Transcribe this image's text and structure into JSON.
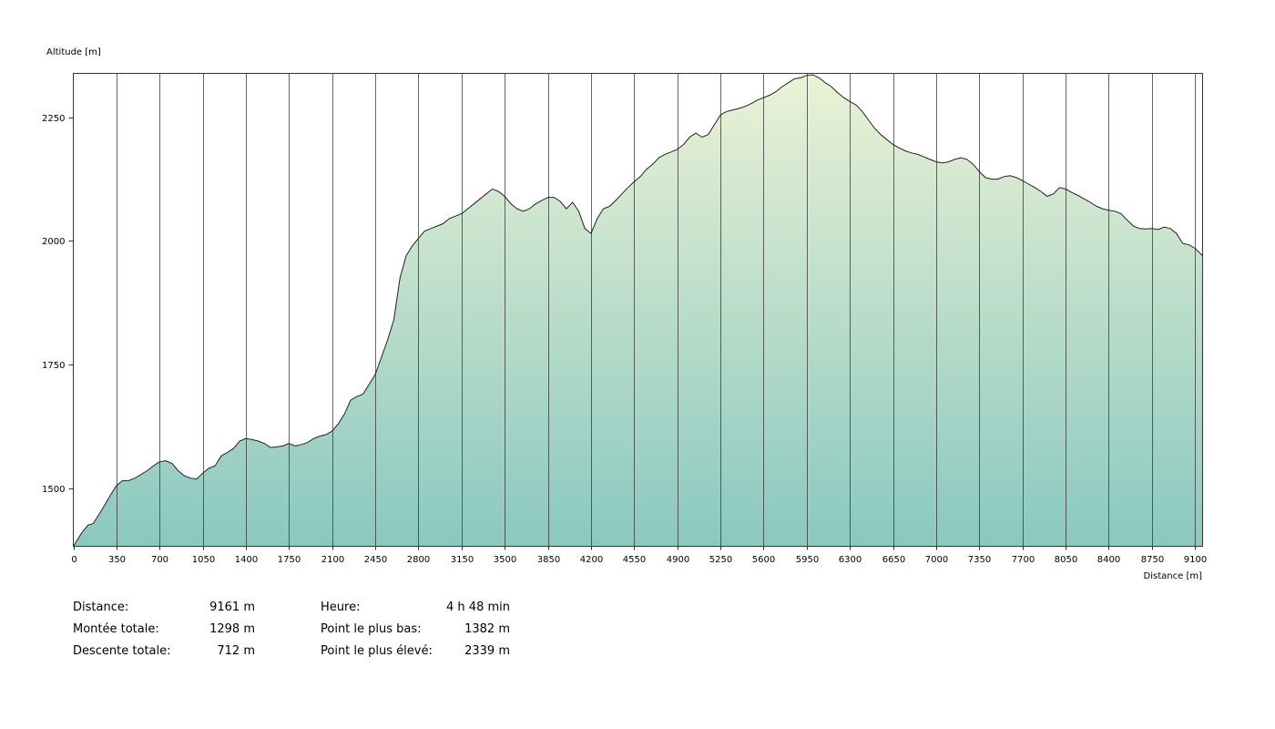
{
  "chart_data": {
    "type": "area",
    "ylabel": "Altitude [m]",
    "xlabel": "Distance [m]",
    "xlim": [
      0,
      9161
    ],
    "ylim": [
      1382,
      2339
    ],
    "x_ticks": [
      0,
      350,
      700,
      1050,
      1400,
      1750,
      2100,
      2450,
      2800,
      3150,
      3500,
      3850,
      4200,
      4550,
      4900,
      5250,
      5600,
      5950,
      6300,
      6650,
      7000,
      7350,
      7700,
      8050,
      8400,
      8750,
      9100
    ],
    "y_ticks": [
      1500,
      1750,
      2000,
      2250
    ],
    "grid": "vertical",
    "fill_colors": {
      "top": "#eaf2d5",
      "bottom": "#8ac8c0"
    },
    "line_color": "#222222",
    "series": [
      {
        "x": [
          0,
          70,
          120,
          160,
          230,
          300,
          350,
          400,
          450,
          500,
          600,
          650,
          700,
          750,
          800,
          850,
          900,
          950,
          1000,
          1050,
          1100,
          1150,
          1200,
          1250,
          1300,
          1350,
          1400,
          1450,
          1500,
          1550,
          1600,
          1650,
          1700,
          1750,
          1800,
          1850,
          1900,
          1950,
          2000,
          2050,
          2100,
          2150,
          2200,
          2250,
          2300,
          2350,
          2400,
          2450,
          2500,
          2550,
          2600,
          2650,
          2700,
          2750,
          2800,
          2850,
          2900,
          2950,
          3000,
          3050,
          3100,
          3150,
          3200,
          3250,
          3300,
          3350,
          3400,
          3450,
          3500,
          3550,
          3600,
          3650,
          3700,
          3750,
          3800,
          3850,
          3900,
          3950,
          4000,
          4050,
          4100,
          4150,
          4200,
          4250,
          4300,
          4350,
          4400,
          4450,
          4500,
          4550,
          4600,
          4650,
          4700,
          4750,
          4800,
          4850,
          4900,
          4950,
          5000,
          5050,
          5100,
          5150,
          5200,
          5250,
          5300,
          5350,
          5400,
          5450,
          5500,
          5550,
          5600,
          5650,
          5700,
          5750,
          5800,
          5850,
          5900,
          5950,
          6000,
          6050,
          6100,
          6150,
          6200,
          6250,
          6300,
          6350,
          6400,
          6450,
          6500,
          6550,
          6600,
          6650,
          6700,
          6750,
          6800,
          6850,
          6900,
          6950,
          7000,
          7050,
          7100,
          7150,
          7200,
          7250,
          7300,
          7350,
          7400,
          7450,
          7500,
          7550,
          7600,
          7650,
          7700,
          7750,
          7800,
          7850,
          7900,
          7950,
          8000,
          8050,
          8100,
          8150,
          8200,
          8250,
          8300,
          8350,
          8400,
          8450,
          8500,
          8550,
          8600,
          8650,
          8700,
          8750,
          8800,
          8850,
          8900,
          8950,
          9000,
          9050,
          9100,
          9161
        ],
        "y": [
          1382,
          1410,
          1425,
          1428,
          1455,
          1485,
          1505,
          1515,
          1515,
          1520,
          1535,
          1545,
          1553,
          1555,
          1550,
          1535,
          1525,
          1520,
          1518,
          1530,
          1540,
          1545,
          1565,
          1572,
          1580,
          1595,
          1600,
          1598,
          1595,
          1590,
          1582,
          1583,
          1585,
          1590,
          1585,
          1588,
          1592,
          1600,
          1605,
          1608,
          1615,
          1630,
          1650,
          1678,
          1685,
          1690,
          1710,
          1730,
          1765,
          1800,
          1840,
          1925,
          1970,
          1990,
          2005,
          2020,
          2025,
          2030,
          2035,
          2045,
          2050,
          2055,
          2065,
          2075,
          2085,
          2095,
          2105,
          2100,
          2090,
          2075,
          2065,
          2060,
          2065,
          2075,
          2082,
          2088,
          2088,
          2080,
          2065,
          2078,
          2060,
          2025,
          2015,
          2045,
          2065,
          2070,
          2082,
          2095,
          2108,
          2120,
          2130,
          2145,
          2155,
          2168,
          2175,
          2180,
          2185,
          2195,
          2210,
          2218,
          2210,
          2215,
          2235,
          2255,
          2262,
          2265,
          2268,
          2272,
          2278,
          2285,
          2290,
          2295,
          2302,
          2312,
          2320,
          2328,
          2330,
          2335,
          2336,
          2330,
          2320,
          2312,
          2300,
          2290,
          2282,
          2275,
          2262,
          2245,
          2228,
          2215,
          2205,
          2195,
          2188,
          2182,
          2178,
          2175,
          2170,
          2165,
          2160,
          2158,
          2160,
          2165,
          2168,
          2165,
          2155,
          2140,
          2128,
          2125,
          2125,
          2130,
          2132,
          2128,
          2122,
          2115,
          2108,
          2100,
          2090,
          2095,
          2108,
          2105,
          2098,
          2092,
          2085,
          2078,
          2070,
          2065,
          2062,
          2060,
          2055,
          2042,
          2030,
          2025,
          2024,
          2025,
          2023,
          2028,
          2025,
          2015,
          1995,
          1992,
          1985,
          1970
        ]
      }
    ]
  },
  "stats": {
    "left": [
      {
        "label": "Distance:",
        "value": "9161 m"
      },
      {
        "label": "Montée totale:",
        "value": "1298 m"
      },
      {
        "label": "Descente totale:",
        "value": "712 m"
      }
    ],
    "right": [
      {
        "label": "Heure:",
        "value": "4 h 48 min"
      },
      {
        "label": "Point le plus bas:",
        "value": "1382 m"
      },
      {
        "label": "Point le plus élevé:",
        "value": "2339 m"
      }
    ]
  }
}
